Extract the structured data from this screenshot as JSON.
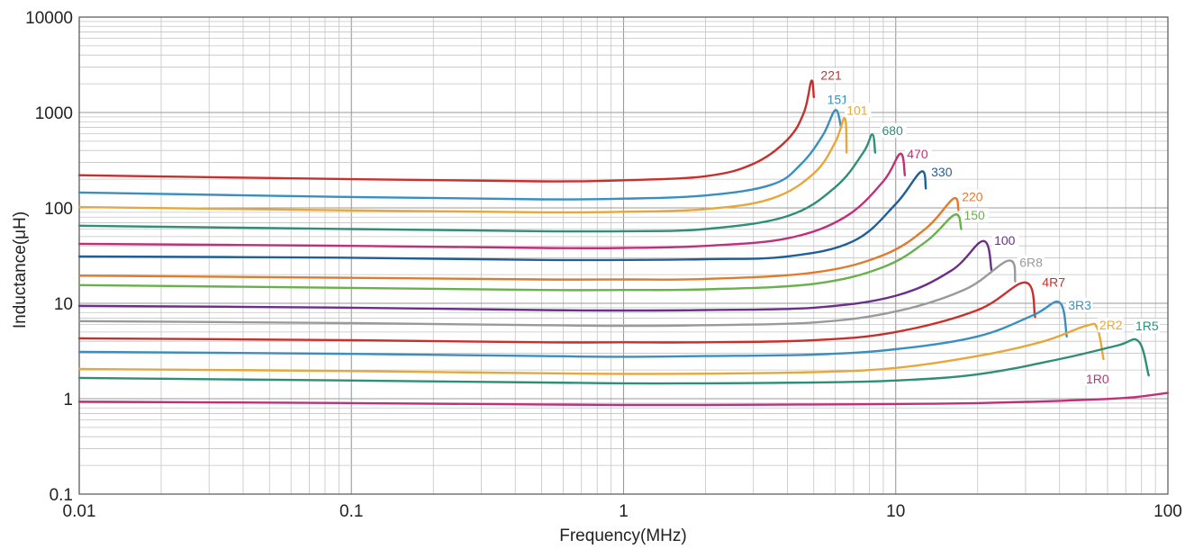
{
  "chart_data": {
    "type": "line",
    "title": "",
    "xlabel": "Frequency(MHz)",
    "ylabel": "Inductance(μH)",
    "x_scale": "log",
    "y_scale": "log",
    "xlim": [
      0.01,
      100
    ],
    "ylim": [
      0.1,
      10000
    ],
    "grid": true,
    "x_ticks": [
      {
        "value": 0.01,
        "label": "0.01"
      },
      {
        "value": 0.1,
        "label": "0.1"
      },
      {
        "value": 1,
        "label": "1"
      },
      {
        "value": 10,
        "label": "10"
      },
      {
        "value": 100,
        "label": "100"
      }
    ],
    "y_ticks": [
      {
        "value": 0.1,
        "label": "0.1"
      },
      {
        "value": 1,
        "label": "1"
      },
      {
        "value": 10,
        "label": "10"
      },
      {
        "value": 100,
        "label": "100"
      },
      {
        "value": 1000,
        "label": "1000"
      },
      {
        "value": 10000,
        "label": "10000"
      }
    ],
    "series": [
      {
        "name": "221",
        "color": "#c8302e",
        "label_at": [
          5.3,
          2200
        ],
        "points": [
          [
            0.01,
            220
          ],
          [
            0.1,
            200
          ],
          [
            0.5,
            190
          ],
          [
            1,
            195
          ],
          [
            2,
            215
          ],
          [
            3,
            290
          ],
          [
            4,
            520
          ],
          [
            4.6,
            1000
          ],
          [
            4.9,
            2150
          ],
          [
            5.0,
            1450
          ]
        ]
      },
      {
        "name": "151",
        "color": "#3a8fc0",
        "label_at": [
          5.6,
          1230
        ],
        "points": [
          [
            0.01,
            145
          ],
          [
            0.1,
            130
          ],
          [
            0.5,
            123
          ],
          [
            1,
            125
          ],
          [
            2,
            135
          ],
          [
            3.5,
            175
          ],
          [
            4.5,
            290
          ],
          [
            5.4,
            580
          ],
          [
            6.0,
            1060
          ],
          [
            6.3,
            700
          ]
        ]
      },
      {
        "name": "101",
        "color": "#e6a83a",
        "label_at": [
          6.6,
          950
        ],
        "points": [
          [
            0.01,
            102
          ],
          [
            0.1,
            94
          ],
          [
            0.5,
            90
          ],
          [
            1,
            91
          ],
          [
            2,
            97
          ],
          [
            3.5,
            125
          ],
          [
            5,
            230
          ],
          [
            6.0,
            490
          ],
          [
            6.5,
            870
          ],
          [
            6.6,
            380
          ]
        ]
      },
      {
        "name": "680",
        "color": "#2e8e78",
        "label_at": [
          8.9,
          580
        ],
        "points": [
          [
            0.01,
            65
          ],
          [
            0.1,
            60
          ],
          [
            0.5,
            57
          ],
          [
            1,
            57
          ],
          [
            2,
            60
          ],
          [
            4,
            82
          ],
          [
            6,
            165
          ],
          [
            7.6,
            380
          ],
          [
            8.2,
            590
          ],
          [
            8.4,
            380
          ]
        ]
      },
      {
        "name": "470",
        "color": "#c0307a",
        "label_at": [
          11.0,
          330
        ],
        "points": [
          [
            0.01,
            42
          ],
          [
            0.1,
            40
          ],
          [
            0.5,
            38
          ],
          [
            1,
            38
          ],
          [
            2,
            40
          ],
          [
            4,
            48
          ],
          [
            6.5,
            80
          ],
          [
            9,
            190
          ],
          [
            10.4,
            370
          ],
          [
            10.8,
            220
          ]
        ]
      },
      {
        "name": "330",
        "color": "#1f5e99",
        "label_at": [
          13.5,
          215
        ],
        "points": [
          [
            0.01,
            31
          ],
          [
            0.1,
            30
          ],
          [
            0.5,
            28.5
          ],
          [
            1,
            28.5
          ],
          [
            2,
            29
          ],
          [
            4,
            31
          ],
          [
            7,
            45
          ],
          [
            10,
            110
          ],
          [
            12.4,
            240
          ],
          [
            12.9,
            160
          ]
        ]
      },
      {
        "name": "220",
        "color": "#e07b2e",
        "label_at": [
          17.5,
          118
        ],
        "points": [
          [
            0.01,
            19.5
          ],
          [
            0.1,
            18.5
          ],
          [
            0.5,
            17.8
          ],
          [
            1,
            17.8
          ],
          [
            2,
            18
          ],
          [
            5,
            21
          ],
          [
            9,
            32
          ],
          [
            13,
            62
          ],
          [
            16.3,
            125
          ],
          [
            17.0,
            95
          ]
        ]
      },
      {
        "name": "150",
        "color": "#6ab04c",
        "label_at": [
          17.8,
          75
        ],
        "points": [
          [
            0.01,
            15.5
          ],
          [
            0.1,
            14.5
          ],
          [
            0.5,
            13.8
          ],
          [
            1,
            13.8
          ],
          [
            2,
            14
          ],
          [
            5,
            16
          ],
          [
            9,
            24
          ],
          [
            13,
            45
          ],
          [
            16.5,
            85
          ],
          [
            17.4,
            60
          ]
        ]
      },
      {
        "name": "100",
        "color": "#6a2f8a",
        "label_at": [
          23.0,
          41
        ],
        "points": [
          [
            0.01,
            9.4
          ],
          [
            0.1,
            9.0
          ],
          [
            0.5,
            8.5
          ],
          [
            1,
            8.4
          ],
          [
            2,
            8.5
          ],
          [
            5,
            9.0
          ],
          [
            10,
            12
          ],
          [
            16,
            22
          ],
          [
            21,
            45
          ],
          [
            22.5,
            22
          ]
        ]
      },
      {
        "name": "6R8",
        "color": "#9a9a9a",
        "label_at": [
          28.5,
          24
        ],
        "points": [
          [
            0.01,
            6.5
          ],
          [
            0.1,
            6.2
          ],
          [
            0.5,
            5.9
          ],
          [
            1,
            5.8
          ],
          [
            2,
            5.9
          ],
          [
            5,
            6.3
          ],
          [
            10,
            8.2
          ],
          [
            18,
            14
          ],
          [
            26,
            28
          ],
          [
            27.5,
            17
          ]
        ]
      },
      {
        "name": "4R7",
        "color": "#c8302e",
        "label_at": [
          34.5,
          15
        ],
        "points": [
          [
            0.01,
            4.3
          ],
          [
            0.1,
            4.1
          ],
          [
            0.5,
            3.9
          ],
          [
            1,
            3.9
          ],
          [
            2,
            3.9
          ],
          [
            5,
            4.1
          ],
          [
            10,
            5.0
          ],
          [
            20,
            8.5
          ],
          [
            30,
            16.5
          ],
          [
            32.5,
            7.2
          ]
        ]
      },
      {
        "name": "3R3",
        "color": "#3a8fc0",
        "label_at": [
          43,
          8.6
        ],
        "points": [
          [
            0.01,
            3.1
          ],
          [
            0.1,
            2.95
          ],
          [
            0.5,
            2.8
          ],
          [
            1,
            2.75
          ],
          [
            2,
            2.8
          ],
          [
            5,
            2.9
          ],
          [
            10,
            3.3
          ],
          [
            20,
            4.5
          ],
          [
            32,
            7.5
          ],
          [
            40,
            10.2
          ],
          [
            42.5,
            4.5
          ]
        ]
      },
      {
        "name": "2R2",
        "color": "#e6a83a",
        "label_at": [
          56,
          5.3
        ],
        "points": [
          [
            0.01,
            2.05
          ],
          [
            0.1,
            1.95
          ],
          [
            0.5,
            1.85
          ],
          [
            1,
            1.82
          ],
          [
            2,
            1.83
          ],
          [
            5,
            1.9
          ],
          [
            10,
            2.1
          ],
          [
            20,
            2.8
          ],
          [
            35,
            4.0
          ],
          [
            50,
            5.8
          ],
          [
            55,
            5.5
          ],
          [
            58,
            2.6
          ]
        ]
      },
      {
        "name": "1R5",
        "color": "#2e8e78",
        "label_at": [
          76,
          5.2
        ],
        "points": [
          [
            0.01,
            1.65
          ],
          [
            0.1,
            1.55
          ],
          [
            0.5,
            1.48
          ],
          [
            1,
            1.45
          ],
          [
            2,
            1.45
          ],
          [
            5,
            1.48
          ],
          [
            10,
            1.55
          ],
          [
            20,
            1.8
          ],
          [
            40,
            2.6
          ],
          [
            65,
            3.6
          ],
          [
            78,
            4.0
          ],
          [
            85,
            1.75
          ]
        ]
      },
      {
        "name": "1R0",
        "color": "#c0307a",
        "label_at": [
          50,
          1.45
        ],
        "points": [
          [
            0.01,
            0.93
          ],
          [
            0.1,
            0.9
          ],
          [
            0.5,
            0.87
          ],
          [
            1,
            0.86
          ],
          [
            2,
            0.86
          ],
          [
            5,
            0.87
          ],
          [
            10,
            0.88
          ],
          [
            20,
            0.9
          ],
          [
            40,
            0.95
          ],
          [
            70,
            1.02
          ],
          [
            100,
            1.15
          ]
        ]
      }
    ]
  }
}
